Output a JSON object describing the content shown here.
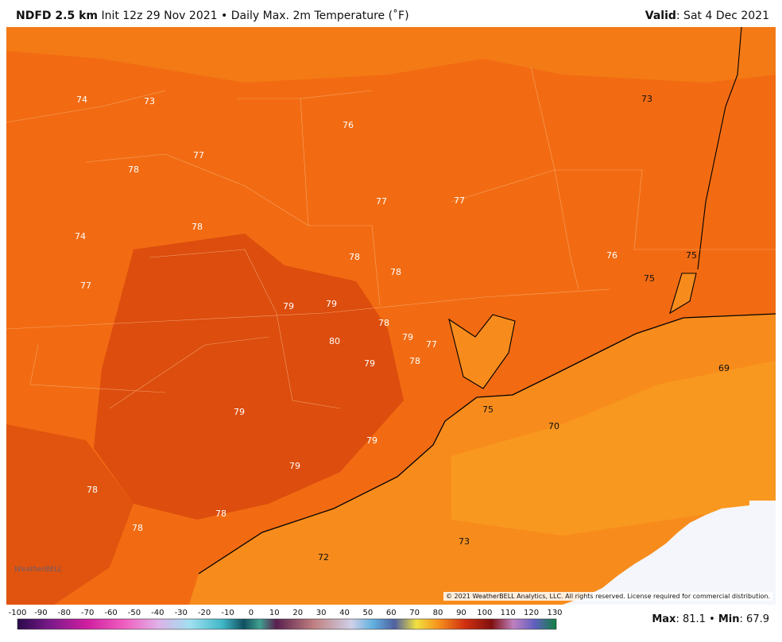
{
  "header": {
    "model": "NDFD 2.5 km",
    "init": "Init 12z 29 Nov 2021",
    "separator": "•",
    "product": "Daily Max. 2m Temperature (˚F)",
    "valid_label": "Valid",
    "valid_time": ": Sat 4 Dec 2021"
  },
  "map": {
    "labels": [
      "74",
      "73",
      "76",
      "73",
      "77",
      "78",
      "77",
      "77",
      "74",
      "78",
      "78",
      "78",
      "76",
      "75",
      "75",
      "77",
      "79",
      "79",
      "78",
      "79",
      "77",
      "80",
      "79",
      "78",
      "69",
      "75",
      "70",
      "79",
      "79",
      "79",
      "78",
      "78",
      "78",
      "73",
      "72"
    ]
  },
  "colorbar": {
    "ticks": [
      "-100",
      "-90",
      "-80",
      "-70",
      "-60",
      "-50",
      "-40",
      "-30",
      "-20",
      "-10",
      "0",
      "10",
      "20",
      "30",
      "40",
      "50",
      "60",
      "70",
      "80",
      "90",
      "100",
      "110",
      "120",
      "130"
    ]
  },
  "stats": {
    "max_label": "Max",
    "max": ": 81.1",
    "separator": "•",
    "min_label": "Min",
    "min": ": 67.9"
  },
  "footer": {
    "copyright": "© 2021 WeatherBELL Analytics, LLC. All rights reserved. License required for commercial distribution.",
    "logo": "WeatherBELL"
  }
}
